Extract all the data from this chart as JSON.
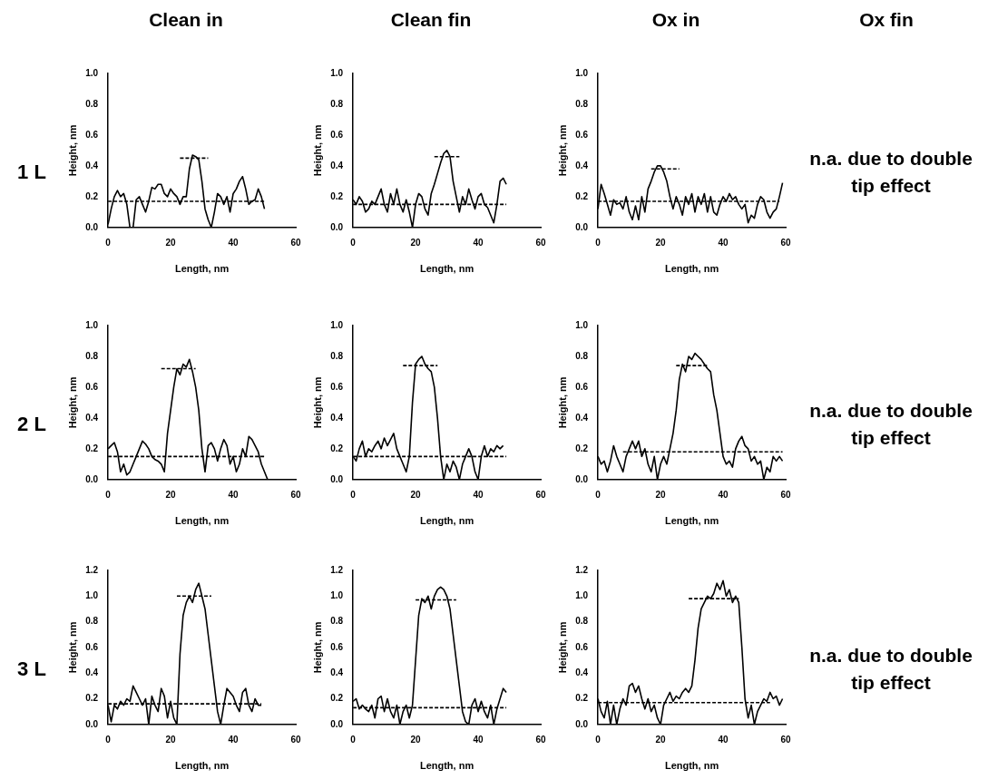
{
  "chart_data": [
    {
      "type": "other",
      "title": "1 L"
    },
    {
      "type": "line",
      "title": "Clean in",
      "xlabel": "Length, nm",
      "ylabel": "Height, nm",
      "xlim": [
        0,
        60
      ],
      "xticks": [
        0,
        20,
        40,
        60
      ],
      "ylim": [
        0,
        1
      ],
      "yticks": [
        {
          "value": 0,
          "label": "0.0"
        },
        {
          "value": 0.2,
          "label": "0.2"
        },
        {
          "value": 0.4,
          "label": "0.4"
        },
        {
          "value": 0.6,
          "label": "0.6"
        },
        {
          "value": 0.8,
          "label": "0.8"
        },
        {
          "value": 1,
          "label": "1.0"
        }
      ],
      "grid": false,
      "marker": "none",
      "series": [
        {
          "color": "#000000",
          "line_style": "solid",
          "x": [
            0,
            1,
            2,
            3,
            4,
            5,
            6,
            7,
            8,
            9,
            10,
            11,
            12,
            13,
            14,
            15,
            16,
            17,
            18,
            19,
            20,
            21,
            22,
            23,
            24,
            25,
            26,
            27,
            28,
            29,
            30,
            31,
            32,
            33,
            34,
            35,
            36,
            37,
            38,
            39,
            40,
            41,
            42,
            43,
            44,
            45,
            46,
            47,
            48,
            49,
            50
          ],
          "values": [
            0.02,
            0.12,
            0.2,
            0.24,
            0.2,
            0.22,
            0.15,
            0,
            0,
            0.18,
            0.2,
            0.15,
            0.1,
            0.17,
            0.26,
            0.25,
            0.28,
            0.28,
            0.22,
            0.2,
            0.25,
            0.22,
            0.2,
            0.15,
            0.2,
            0.2,
            0.38,
            0.47,
            0.46,
            0.44,
            0.3,
            0.12,
            0.05,
            0,
            0.1,
            0.22,
            0.2,
            0.15,
            0.2,
            0.1,
            0.22,
            0.25,
            0.3,
            0.33,
            0.25,
            0.15,
            0.17,
            0.18,
            0.25,
            0.2,
            0.12
          ]
        },
        {
          "color": "#000000",
          "line_style": "dashed",
          "x": [
            0,
            50
          ],
          "values": [
            0.17,
            0.17
          ]
        },
        {
          "color": "#000000",
          "line_style": "dashed",
          "x": [
            23,
            32
          ],
          "values": [
            0.45,
            0.45
          ]
        }
      ]
    },
    {
      "type": "line",
      "title": "Clean fin",
      "xlabel": "Length, nm",
      "ylabel": "Height, nm",
      "xlim": [
        0,
        60
      ],
      "xticks": [
        0,
        20,
        40,
        60
      ],
      "ylim": [
        0,
        1
      ],
      "yticks": [
        {
          "value": 0,
          "label": "0.0"
        },
        {
          "value": 0.2,
          "label": "0.2"
        },
        {
          "value": 0.4,
          "label": "0.4"
        },
        {
          "value": 0.6,
          "label": "0.6"
        },
        {
          "value": 0.8,
          "label": "0.8"
        },
        {
          "value": 1,
          "label": "1.0"
        }
      ],
      "grid": false,
      "marker": "none",
      "series": [
        {
          "color": "#000000",
          "line_style": "solid",
          "x": [
            0,
            1,
            2,
            3,
            4,
            5,
            6,
            7,
            8,
            9,
            10,
            11,
            12,
            13,
            14,
            15,
            16,
            17,
            18,
            19,
            20,
            21,
            22,
            23,
            24,
            25,
            26,
            27,
            28,
            29,
            30,
            31,
            32,
            33,
            34,
            35,
            36,
            37,
            38,
            39,
            40,
            41,
            42,
            43,
            44,
            45,
            46,
            47,
            48,
            49
          ],
          "values": [
            0.18,
            0.15,
            0.2,
            0.17,
            0.1,
            0.12,
            0.17,
            0.15,
            0.2,
            0.25,
            0.15,
            0.1,
            0.22,
            0.15,
            0.25,
            0.15,
            0.1,
            0.18,
            0.1,
            0,
            0.15,
            0.22,
            0.2,
            0.12,
            0.08,
            0.22,
            0.28,
            0.35,
            0.42,
            0.48,
            0.5,
            0.46,
            0.3,
            0.2,
            0.1,
            0.2,
            0.15,
            0.25,
            0.18,
            0.12,
            0.2,
            0.22,
            0.15,
            0.13,
            0.08,
            0.03,
            0.15,
            0.3,
            0.32,
            0.28
          ]
        },
        {
          "color": "#000000",
          "line_style": "dashed",
          "x": [
            0,
            49
          ],
          "values": [
            0.15,
            0.15
          ]
        },
        {
          "color": "#000000",
          "line_style": "dashed",
          "x": [
            26,
            34
          ],
          "values": [
            0.46,
            0.46
          ]
        }
      ]
    },
    {
      "type": "line",
      "title": "Ox in",
      "xlabel": "Length, nm",
      "ylabel": "Height, nm",
      "xlim": [
        0,
        60
      ],
      "xticks": [
        0,
        20,
        40,
        60
      ],
      "ylim": [
        0,
        1
      ],
      "yticks": [
        {
          "value": 0,
          "label": "0.0"
        },
        {
          "value": 0.2,
          "label": "0.2"
        },
        {
          "value": 0.4,
          "label": "0.4"
        },
        {
          "value": 0.6,
          "label": "0.6"
        },
        {
          "value": 0.8,
          "label": "0.8"
        },
        {
          "value": 1,
          "label": "1.0"
        }
      ],
      "grid": false,
      "marker": "none",
      "series": [
        {
          "color": "#000000",
          "line_style": "solid",
          "x": [
            0,
            1,
            2,
            3,
            4,
            5,
            6,
            7,
            8,
            9,
            10,
            11,
            12,
            13,
            14,
            15,
            16,
            17,
            18,
            19,
            20,
            21,
            22,
            23,
            24,
            25,
            26,
            27,
            28,
            29,
            30,
            31,
            32,
            33,
            34,
            35,
            36,
            37,
            38,
            39,
            40,
            41,
            42,
            43,
            44,
            45,
            46,
            47,
            48,
            49,
            50,
            51,
            52,
            53,
            54,
            55,
            56,
            57,
            58,
            59
          ],
          "values": [
            0.12,
            0.28,
            0.22,
            0.15,
            0.08,
            0.18,
            0.15,
            0.16,
            0.12,
            0.2,
            0.1,
            0.05,
            0.14,
            0.05,
            0.2,
            0.1,
            0.25,
            0.3,
            0.36,
            0.4,
            0.4,
            0.36,
            0.3,
            0.2,
            0.12,
            0.2,
            0.15,
            0.08,
            0.2,
            0.15,
            0.22,
            0.1,
            0.2,
            0.15,
            0.22,
            0.1,
            0.2,
            0.1,
            0.08,
            0.15,
            0.2,
            0.17,
            0.22,
            0.18,
            0.2,
            0.15,
            0.12,
            0.15,
            0.03,
            0.08,
            0.06,
            0.15,
            0.2,
            0.18,
            0.1,
            0.06,
            0.1,
            0.12,
            0.2,
            0.29
          ]
        },
        {
          "color": "#000000",
          "line_style": "dashed",
          "x": [
            0,
            58
          ],
          "values": [
            0.17,
            0.17
          ]
        },
        {
          "color": "#000000",
          "line_style": "dashed",
          "x": [
            17,
            26
          ],
          "values": [
            0.38,
            0.38
          ]
        }
      ]
    },
    {
      "type": "other",
      "title": "Ox fin",
      "annotations": [
        "n.a. due to double tip effect"
      ]
    },
    {
      "type": "other",
      "title": "2 L"
    },
    {
      "type": "line",
      "xlabel": "Length, nm",
      "ylabel": "Height, nm",
      "xlim": [
        0,
        60
      ],
      "xticks": [
        0,
        20,
        40,
        60
      ],
      "ylim": [
        0,
        1
      ],
      "yticks": [
        {
          "value": 0,
          "label": "0.0"
        },
        {
          "value": 0.2,
          "label": "0.2"
        },
        {
          "value": 0.4,
          "label": "0.4"
        },
        {
          "value": 0.6,
          "label": "0.6"
        },
        {
          "value": 0.8,
          "label": "0.8"
        },
        {
          "value": 1,
          "label": "1.0"
        }
      ],
      "grid": false,
      "marker": "none",
      "series": [
        {
          "color": "#000000",
          "line_style": "solid",
          "x": [
            0,
            1,
            2,
            3,
            4,
            5,
            6,
            7,
            8,
            9,
            10,
            11,
            12,
            13,
            14,
            15,
            16,
            17,
            18,
            19,
            20,
            21,
            22,
            23,
            24,
            25,
            26,
            27,
            28,
            29,
            30,
            31,
            32,
            33,
            34,
            35,
            36,
            37,
            38,
            39,
            40,
            41,
            42,
            43,
            44,
            45,
            46,
            47,
            48,
            49,
            50,
            51
          ],
          "values": [
            0.2,
            0.22,
            0.24,
            0.18,
            0.05,
            0.1,
            0.03,
            0.05,
            0.1,
            0.15,
            0.2,
            0.25,
            0.23,
            0.2,
            0.15,
            0.13,
            0.12,
            0.1,
            0.05,
            0.3,
            0.45,
            0.6,
            0.72,
            0.68,
            0.75,
            0.73,
            0.78,
            0.7,
            0.6,
            0.45,
            0.2,
            0.05,
            0.22,
            0.24,
            0.2,
            0.12,
            0.2,
            0.26,
            0.22,
            0.1,
            0.15,
            0.05,
            0.1,
            0.2,
            0.15,
            0.28,
            0.26,
            0.22,
            0.18,
            0.1,
            0.05,
            0
          ]
        },
        {
          "color": "#000000",
          "line_style": "dashed",
          "x": [
            0,
            50
          ],
          "values": [
            0.15,
            0.15
          ]
        },
        {
          "color": "#000000",
          "line_style": "dashed",
          "x": [
            17,
            28
          ],
          "values": [
            0.72,
            0.72
          ]
        }
      ]
    },
    {
      "type": "line",
      "xlabel": "Length, nm",
      "ylabel": "Height, nm",
      "xlim": [
        0,
        60
      ],
      "xticks": [
        0,
        20,
        40,
        60
      ],
      "ylim": [
        0,
        1
      ],
      "yticks": [
        {
          "value": 0,
          "label": "0.0"
        },
        {
          "value": 0.2,
          "label": "0.2"
        },
        {
          "value": 0.4,
          "label": "0.4"
        },
        {
          "value": 0.6,
          "label": "0.6"
        },
        {
          "value": 0.8,
          "label": "0.8"
        },
        {
          "value": 1,
          "label": "1.0"
        }
      ],
      "grid": false,
      "marker": "none",
      "series": [
        {
          "color": "#000000",
          "line_style": "solid",
          "x": [
            0,
            1,
            2,
            3,
            4,
            5,
            6,
            7,
            8,
            9,
            10,
            11,
            12,
            13,
            14,
            15,
            16,
            17,
            18,
            19,
            20,
            21,
            22,
            23,
            24,
            25,
            26,
            27,
            28,
            29,
            30,
            31,
            32,
            33,
            34,
            35,
            36,
            37,
            38,
            39,
            40,
            41,
            42,
            43,
            44,
            45,
            46,
            47,
            48
          ],
          "values": [
            0.15,
            0.12,
            0.2,
            0.25,
            0.15,
            0.2,
            0.18,
            0.22,
            0.25,
            0.2,
            0.27,
            0.22,
            0.26,
            0.3,
            0.2,
            0.15,
            0.1,
            0.05,
            0.15,
            0.5,
            0.75,
            0.78,
            0.8,
            0.75,
            0.72,
            0.7,
            0.6,
            0.4,
            0.15,
            0,
            0.1,
            0.05,
            0.12,
            0.08,
            0,
            0.1,
            0.15,
            0.2,
            0.15,
            0.05,
            0,
            0.15,
            0.22,
            0.15,
            0.2,
            0.18,
            0.22,
            0.2,
            0.22
          ]
        },
        {
          "color": "#000000",
          "line_style": "dashed",
          "x": [
            0,
            49
          ],
          "values": [
            0.15,
            0.15
          ]
        },
        {
          "color": "#000000",
          "line_style": "dashed",
          "x": [
            16,
            27
          ],
          "values": [
            0.74,
            0.74
          ]
        }
      ]
    },
    {
      "type": "line",
      "xlabel": "Length, nm",
      "ylabel": "Height, nm",
      "xlim": [
        0,
        60
      ],
      "xticks": [
        0,
        20,
        40,
        60
      ],
      "ylim": [
        0,
        1
      ],
      "yticks": [
        {
          "value": 0,
          "label": "0.0"
        },
        {
          "value": 0.2,
          "label": "0.2"
        },
        {
          "value": 0.4,
          "label": "0.4"
        },
        {
          "value": 0.6,
          "label": "0.6"
        },
        {
          "value": 0.8,
          "label": "0.8"
        },
        {
          "value": 1,
          "label": "1.0"
        }
      ],
      "grid": false,
      "marker": "none",
      "series": [
        {
          "color": "#000000",
          "line_style": "solid",
          "x": [
            0,
            1,
            2,
            3,
            4,
            5,
            6,
            7,
            8,
            9,
            10,
            11,
            12,
            13,
            14,
            15,
            16,
            17,
            18,
            19,
            20,
            21,
            22,
            23,
            24,
            25,
            26,
            27,
            28,
            29,
            30,
            31,
            32,
            33,
            34,
            35,
            36,
            37,
            38,
            39,
            40,
            41,
            42,
            43,
            44,
            45,
            46,
            47,
            48,
            49,
            50,
            51,
            52,
            53,
            54,
            55,
            56,
            57,
            58,
            59
          ],
          "values": [
            0.15,
            0.1,
            0.12,
            0.05,
            0.12,
            0.22,
            0.15,
            0.1,
            0.05,
            0.15,
            0.2,
            0.25,
            0.2,
            0.25,
            0.15,
            0.2,
            0.1,
            0.05,
            0.15,
            0,
            0.1,
            0.15,
            0.1,
            0.2,
            0.3,
            0.45,
            0.65,
            0.75,
            0.7,
            0.8,
            0.78,
            0.82,
            0.8,
            0.78,
            0.75,
            0.72,
            0.7,
            0.55,
            0.45,
            0.3,
            0.15,
            0.1,
            0.12,
            0.08,
            0.2,
            0.25,
            0.28,
            0.22,
            0.2,
            0.12,
            0.15,
            0.1,
            0.12,
            0,
            0.08,
            0.05,
            0.15,
            0.12,
            0.15,
            0.12
          ]
        },
        {
          "color": "#000000",
          "line_style": "dashed",
          "x": [
            8,
            59
          ],
          "values": [
            0.18,
            0.18
          ]
        },
        {
          "color": "#000000",
          "line_style": "dashed",
          "x": [
            25,
            35
          ],
          "values": [
            0.74,
            0.74
          ]
        }
      ]
    },
    {
      "type": "other",
      "annotations": [
        "n.a. due to double tip effect"
      ]
    },
    {
      "type": "other",
      "title": "3 L"
    },
    {
      "type": "line",
      "xlabel": "Length, nm",
      "ylabel": "Height, nm",
      "xlim": [
        0,
        60
      ],
      "xticks": [
        0,
        20,
        40,
        60
      ],
      "ylim": [
        0,
        1.2
      ],
      "yticks": [
        {
          "value": 0,
          "label": "0.0"
        },
        {
          "value": 0.2,
          "label": "0.2"
        },
        {
          "value": 0.4,
          "label": "0.4"
        },
        {
          "value": 0.6,
          "label": "0.6"
        },
        {
          "value": 0.8,
          "label": "0.8"
        },
        {
          "value": 1,
          "label": "1.0"
        },
        {
          "value": 1.2,
          "label": "1.2"
        }
      ],
      "grid": false,
      "marker": "none",
      "series": [
        {
          "color": "#000000",
          "line_style": "solid",
          "x": [
            0,
            1,
            2,
            3,
            4,
            5,
            6,
            7,
            8,
            9,
            10,
            11,
            12,
            13,
            14,
            15,
            16,
            17,
            18,
            19,
            20,
            21,
            22,
            23,
            24,
            25,
            26,
            27,
            28,
            29,
            30,
            31,
            32,
            33,
            34,
            35,
            36,
            37,
            38,
            39,
            40,
            41,
            42,
            43,
            44,
            45,
            46,
            47,
            48,
            49
          ],
          "values": [
            0.15,
            0.02,
            0.15,
            0.12,
            0.18,
            0.15,
            0.2,
            0.18,
            0.3,
            0.25,
            0.2,
            0.15,
            0.2,
            0,
            0.22,
            0.15,
            0.1,
            0.28,
            0.22,
            0.05,
            0.18,
            0.05,
            0,
            0.55,
            0.85,
            0.95,
            1,
            0.95,
            1.05,
            1.1,
            1,
            0.9,
            0.7,
            0.5,
            0.3,
            0.1,
            0,
            0.15,
            0.28,
            0.25,
            0.22,
            0.15,
            0.1,
            0.25,
            0.28,
            0.15,
            0.1,
            0.2,
            0.15,
            0.15
          ]
        },
        {
          "color": "#000000",
          "line_style": "dashed",
          "x": [
            0,
            49
          ],
          "values": [
            0.16,
            0.16
          ]
        },
        {
          "color": "#000000",
          "line_style": "dashed",
          "x": [
            22,
            33
          ],
          "values": [
            1,
            1
          ]
        }
      ]
    },
    {
      "type": "line",
      "xlabel": "Length, nm",
      "ylabel": "Height, nm",
      "xlim": [
        0,
        60
      ],
      "xticks": [
        0,
        20,
        40,
        60
      ],
      "ylim": [
        0,
        1.2
      ],
      "yticks": [
        {
          "value": 0,
          "label": "0.0"
        },
        {
          "value": 0.2,
          "label": "0.2"
        },
        {
          "value": 0.4,
          "label": "0.4"
        },
        {
          "value": 0.6,
          "label": "0.6"
        },
        {
          "value": 0.8,
          "label": "0.8"
        },
        {
          "value": 1,
          "label": "1.0"
        },
        {
          "value": 1.2,
          "label": "1.2"
        }
      ],
      "grid": false,
      "marker": "none",
      "series": [
        {
          "color": "#000000",
          "line_style": "solid",
          "x": [
            0,
            1,
            2,
            3,
            4,
            5,
            6,
            7,
            8,
            9,
            10,
            11,
            12,
            13,
            14,
            15,
            16,
            17,
            18,
            19,
            20,
            21,
            22,
            23,
            24,
            25,
            26,
            27,
            28,
            29,
            30,
            31,
            32,
            33,
            34,
            35,
            36,
            37,
            38,
            39,
            40,
            41,
            42,
            43,
            44,
            45,
            46,
            47,
            48,
            49
          ],
          "values": [
            0.18,
            0.2,
            0.12,
            0.15,
            0.12,
            0.1,
            0.15,
            0.05,
            0.2,
            0.22,
            0.1,
            0.2,
            0.1,
            0.05,
            0.15,
            0,
            0.1,
            0.15,
            0.05,
            0.15,
            0.5,
            0.85,
            0.98,
            0.95,
            1,
            0.9,
            1,
            1.05,
            1.07,
            1.05,
            1,
            0.9,
            0.7,
            0.5,
            0.3,
            0.1,
            0.02,
            0,
            0.15,
            0.2,
            0.1,
            0.18,
            0.1,
            0.05,
            0.15,
            0,
            0.12,
            0.2,
            0.28,
            0.25
          ]
        },
        {
          "color": "#000000",
          "line_style": "dashed",
          "x": [
            0,
            49
          ],
          "values": [
            0.13,
            0.13
          ]
        },
        {
          "color": "#000000",
          "line_style": "dashed",
          "x": [
            20,
            33
          ],
          "values": [
            0.97,
            0.97
          ]
        }
      ]
    },
    {
      "type": "line",
      "xlabel": "Length, nm",
      "ylabel": "Height, nm",
      "xlim": [
        0,
        60
      ],
      "xticks": [
        0,
        20,
        40,
        60
      ],
      "ylim": [
        0,
        1.2
      ],
      "yticks": [
        {
          "value": 0,
          "label": "0.0"
        },
        {
          "value": 0.2,
          "label": "0.2"
        },
        {
          "value": 0.4,
          "label": "0.4"
        },
        {
          "value": 0.6,
          "label": "0.6"
        },
        {
          "value": 0.8,
          "label": "0.8"
        },
        {
          "value": 1,
          "label": "1.0"
        },
        {
          "value": 1.2,
          "label": "1.2"
        }
      ],
      "grid": false,
      "marker": "none",
      "series": [
        {
          "color": "#000000",
          "line_style": "solid",
          "x": [
            0,
            1,
            2,
            3,
            4,
            5,
            6,
            7,
            8,
            9,
            10,
            11,
            12,
            13,
            14,
            15,
            16,
            17,
            18,
            19,
            20,
            21,
            22,
            23,
            24,
            25,
            26,
            27,
            28,
            29,
            30,
            31,
            32,
            33,
            34,
            35,
            36,
            37,
            38,
            39,
            40,
            41,
            42,
            43,
            44,
            45,
            46,
            47,
            48,
            49,
            50,
            51,
            52,
            53,
            54,
            55,
            56,
            57,
            58,
            59
          ],
          "values": [
            0.2,
            0.1,
            0.05,
            0.18,
            0,
            0.15,
            0,
            0.12,
            0.2,
            0.15,
            0.3,
            0.32,
            0.25,
            0.3,
            0.2,
            0.12,
            0.2,
            0.1,
            0.15,
            0.05,
            0,
            0.15,
            0.2,
            0.25,
            0.18,
            0.22,
            0.2,
            0.25,
            0.28,
            0.25,
            0.3,
            0.5,
            0.75,
            0.9,
            0.95,
            1,
            0.98,
            1.02,
            1.1,
            1.05,
            1.12,
            1,
            1.05,
            0.95,
            1,
            0.95,
            0.6,
            0.2,
            0.05,
            0.15,
            0,
            0.1,
            0.15,
            0.2,
            0.18,
            0.25,
            0.2,
            0.22,
            0.15,
            0.2
          ]
        },
        {
          "color": "#000000",
          "line_style": "dashed",
          "x": [
            0,
            55
          ],
          "values": [
            0.17,
            0.17
          ]
        },
        {
          "color": "#000000",
          "line_style": "dashed",
          "x": [
            29,
            45
          ],
          "values": [
            0.98,
            0.98
          ]
        }
      ]
    },
    {
      "type": "other",
      "annotations": [
        "n.a. due to double tip effect"
      ]
    }
  ]
}
